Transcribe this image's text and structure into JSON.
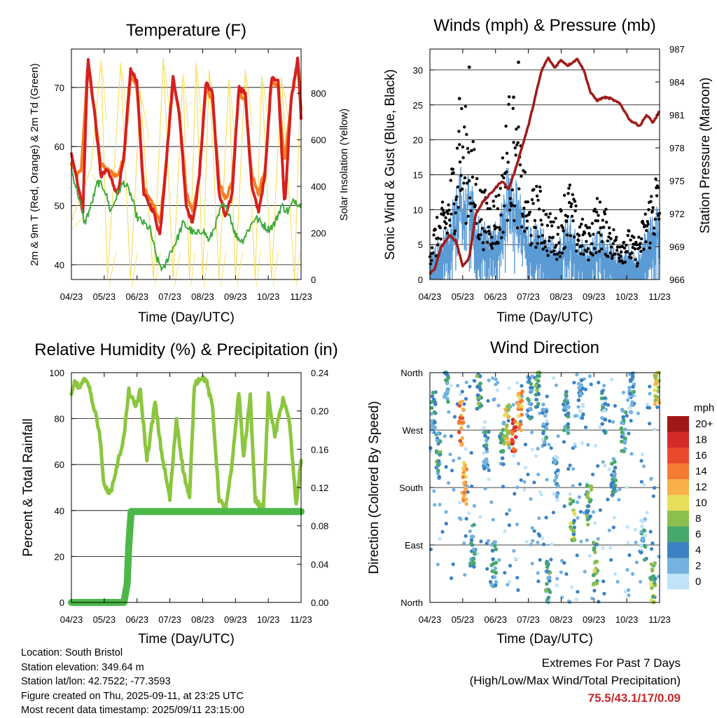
{
  "colors": {
    "temp_red": "#d42020",
    "temp_orange": "#f57f20",
    "dewpoint_green": "#3daa3d",
    "insolation_yellow": "#f7da4a",
    "gust_black": "#000000",
    "wind_blue": "#5b9bd5",
    "pressure_maroon": "#a01c1c",
    "rh_lightgreen": "#8cc63f",
    "precip_green": "#4bb848",
    "extremes_red": "#c62828"
  },
  "info": {
    "location": "Location: South Bristol",
    "elevation": "Station elevation: 349.64 m",
    "latlon": "Station lat/lon: 42.7522; -77.3593",
    "created": "Figure created on Thu, 2025-09-11, at 23:25 UTC",
    "timestamp": "Most recent data timestamp: 2025/09/11 23:15:00"
  },
  "extremes": {
    "title": "Extremes For Past 7 Days",
    "subtitle": "(High/Low/Max Wind/Total Precipitation)",
    "values": "75.5/43.1/17/0.09"
  },
  "chart_data": [
    {
      "id": "temperature",
      "type": "line",
      "title": "Temperature (F)",
      "xlabel": "Time (Day/UTC)",
      "ylabel": "2m & 9m T (Red, Orange) & 2m Td (Green)",
      "ylabel_right": "Solar Insolation (Yellow)",
      "x_ticks": [
        "04/23",
        "05/23",
        "06/23",
        "07/23",
        "08/23",
        "09/23",
        "10/23",
        "11/23"
      ],
      "ylim": [
        37.5,
        76.5
      ],
      "y_ticks": [
        40,
        50,
        60,
        70
      ],
      "ylim_right": [
        0,
        990
      ],
      "y_ticks_right": [
        0,
        200,
        400,
        600,
        800
      ],
      "grid": true,
      "series": [
        {
          "color": "#f7da4a",
          "axis": "right",
          "width": 1,
          "x": [
            0,
            0.6,
            0.9,
            1.1,
            1.5,
            1.8,
            2.1,
            2.5,
            2.8,
            3.1,
            3.4,
            3.6,
            3.8,
            4.0,
            4.2,
            4.5,
            4.8,
            5.0,
            5.3,
            5.6,
            5.8,
            6.1,
            6.4,
            6.8,
            7.0
          ],
          "values": [
            250,
            480,
            940,
            0,
            930,
            0,
            810,
            0,
            950,
            0,
            880,
            0,
            930,
            0,
            900,
            0,
            860,
            0,
            900,
            0,
            880,
            0,
            870,
            0,
            900
          ]
        },
        {
          "color": "#f57f20",
          "axis": "left",
          "width": 4,
          "x": [
            0,
            0.15,
            0.3,
            0.5,
            0.7,
            0.9,
            1.1,
            1.4,
            1.6,
            1.8,
            2.0,
            2.2,
            2.5,
            2.7,
            2.9,
            3.1,
            3.3,
            3.5,
            3.7,
            3.9,
            4.1,
            4.3,
            4.5,
            4.7,
            4.9,
            5.1,
            5.3,
            5.5,
            5.7,
            5.9,
            6.1,
            6.3,
            6.5,
            6.7,
            6.9,
            7.0
          ],
          "values": [
            57,
            55,
            56,
            74,
            66,
            57,
            56,
            55,
            58,
            72,
            70,
            53,
            50,
            47,
            58,
            71,
            65,
            52,
            49,
            55,
            70,
            68,
            54,
            51,
            54,
            69,
            68,
            55,
            52,
            56,
            71,
            70,
            57,
            68,
            74,
            66
          ]
        },
        {
          "color": "#d42020",
          "axis": "left",
          "width": 4,
          "x": [
            0,
            0.15,
            0.35,
            0.5,
            0.7,
            0.9,
            1.1,
            1.4,
            1.6,
            1.8,
            2.0,
            2.2,
            2.5,
            2.7,
            2.9,
            3.1,
            3.3,
            3.5,
            3.7,
            3.9,
            4.1,
            4.3,
            4.5,
            4.7,
            4.9,
            5.1,
            5.3,
            5.5,
            5.7,
            5.9,
            6.1,
            6.3,
            6.5,
            6.7,
            6.9,
            7.0
          ],
          "values": [
            59,
            55,
            49,
            75,
            66,
            55,
            56,
            52,
            58,
            73,
            71,
            52,
            49,
            45,
            58,
            72,
            65,
            50,
            47,
            55,
            71,
            69,
            52,
            48,
            52,
            70,
            69,
            53,
            49,
            55,
            72,
            71,
            50,
            68,
            75,
            65
          ]
        },
        {
          "color": "#3daa3d",
          "axis": "left",
          "width": 2,
          "x": [
            0,
            0.2,
            0.4,
            0.6,
            0.8,
            1.0,
            1.2,
            1.4,
            1.6,
            1.8,
            2.0,
            2.2,
            2.4,
            2.6,
            2.8,
            3.0,
            3.2,
            3.4,
            3.6,
            3.8,
            4.0,
            4.2,
            4.4,
            4.6,
            4.8,
            5.0,
            5.2,
            5.4,
            5.6,
            5.8,
            6.0,
            6.2,
            6.4,
            6.6,
            6.8,
            7.0
          ],
          "values": [
            56,
            52,
            47,
            50,
            54,
            53,
            49,
            52,
            54,
            52,
            48,
            47,
            46,
            41,
            39,
            42,
            44,
            47,
            46,
            45,
            46,
            44,
            47,
            50,
            49,
            45,
            44,
            46,
            48,
            47,
            46,
            47,
            50,
            49,
            51,
            50
          ]
        }
      ]
    },
    {
      "id": "winds",
      "type": "scatter",
      "title": "Winds (mph) & Pressure (mb)",
      "xlabel": "Time (Day/UTC)",
      "ylabel": "Sonic Wind & Gust (Blue, Black)",
      "ylabel_right": "Station Pressure (Maroon)",
      "x_ticks": [
        "04/23",
        "05/23",
        "06/23",
        "07/23",
        "08/23",
        "09/23",
        "10/23",
        "11/23"
      ],
      "ylim": [
        0,
        33
      ],
      "y_ticks": [
        0,
        5,
        10,
        15,
        20,
        25,
        30
      ],
      "ylim_right": [
        966,
        987
      ],
      "y_ticks_right": [
        966,
        969,
        972,
        975,
        978,
        981,
        984,
        987
      ],
      "grid": true,
      "gust_envelope": {
        "x": [
          0,
          0.3,
          0.6,
          0.9,
          1.2,
          1.5,
          1.8,
          2.1,
          2.4,
          2.7,
          3.0,
          3.3,
          3.6,
          3.9,
          4.2,
          4.5,
          4.8,
          5.1,
          5.4,
          5.7,
          6.0,
          6.3,
          6.6,
          6.9,
          7.0
        ],
        "values": [
          6,
          9,
          13,
          24,
          22,
          13,
          11,
          12,
          25,
          20,
          11,
          13,
          9,
          8,
          14,
          9,
          7,
          11,
          9,
          6,
          7,
          5,
          10,
          15,
          12
        ]
      },
      "wind_envelope": {
        "x": [
          0,
          0.3,
          0.6,
          0.9,
          1.2,
          1.5,
          1.8,
          2.1,
          2.4,
          2.7,
          3.0,
          3.3,
          3.6,
          3.9,
          4.2,
          4.5,
          4.8,
          5.1,
          5.4,
          5.7,
          6.0,
          6.3,
          6.6,
          6.9,
          7.0
        ],
        "values": [
          3,
          5,
          7,
          13,
          12,
          7,
          6,
          7,
          14,
          11,
          6,
          7,
          5,
          4,
          8,
          5,
          4,
          6,
          5,
          3,
          4,
          3,
          6,
          9,
          7
        ]
      },
      "gust_outliers": {
        "x": [
          1.2,
          2.7,
          0.9,
          2.55
        ],
        "values": [
          30.4,
          31.1,
          25.9,
          26.1
        ]
      },
      "series": [
        {
          "name": "",
          "color": "#a01c1c",
          "axis": "right",
          "x": [
            0,
            0.15,
            0.35,
            0.6,
            0.8,
            1.0,
            1.2,
            1.4,
            1.6,
            1.9,
            2.2,
            2.4,
            2.6,
            2.8,
            3.0,
            3.2,
            3.4,
            3.6,
            3.8,
            4.0,
            4.2,
            4.5,
            4.7,
            4.9,
            5.1,
            5.3,
            5.5,
            5.8,
            6.1,
            6.4,
            6.6,
            6.8,
            7.0
          ],
          "values": [
            966.5,
            967,
            969,
            970,
            969.5,
            967.2,
            968,
            972,
            973,
            974,
            975,
            974.2,
            976,
            978,
            980,
            982.5,
            985,
            986.2,
            985.3,
            986,
            985.5,
            986.1,
            985,
            983,
            982.3,
            982.6,
            982.5,
            982,
            980.5,
            980,
            981,
            980.3,
            981.3
          ]
        }
      ]
    },
    {
      "id": "rh_precip",
      "type": "line",
      "title": "Relative Humidity (%) & Precipitation (in)",
      "xlabel": "Time (Day/UTC)",
      "ylabel": "Percent & Total Rainfall",
      "x_ticks": [
        "04/23",
        "05/23",
        "06/23",
        "07/23",
        "08/23",
        "09/23",
        "10/23",
        "11/23"
      ],
      "ylim": [
        0,
        100
      ],
      "y_ticks": [
        0,
        20,
        40,
        60,
        80,
        100
      ],
      "ylim_right": [
        0,
        0.24
      ],
      "y_ticks_right": [
        "0.00",
        "0.04",
        "0.08",
        "0.12",
        "0.16",
        "0.20",
        "0.24"
      ],
      "grid": true,
      "series": [
        {
          "color": "#8cc63f",
          "axis": "left",
          "width": 5,
          "x": [
            0,
            0.1,
            0.25,
            0.45,
            0.6,
            0.85,
            1.0,
            1.2,
            1.4,
            1.6,
            1.75,
            1.95,
            2.1,
            2.3,
            2.55,
            2.75,
            3.0,
            3.2,
            3.4,
            3.6,
            3.75,
            3.95,
            4.1,
            4.3,
            4.5,
            4.7,
            4.9,
            5.1,
            5.25,
            5.45,
            5.6,
            5.85,
            6.0,
            6.2,
            6.45,
            6.65,
            6.85,
            7.0
          ],
          "values": [
            90,
            96,
            93,
            98,
            90,
            75,
            50,
            48,
            60,
            72,
            92,
            85,
            92,
            62,
            87,
            65,
            45,
            80,
            58,
            45,
            95,
            98,
            97,
            85,
            45,
            40,
            60,
            92,
            63,
            90,
            45,
            40,
            90,
            72,
            89,
            78,
            42,
            62
          ]
        },
        {
          "color": "#4bb848",
          "axis": "right",
          "width": 10,
          "x": [
            0,
            1.6,
            1.7,
            1.75,
            1.82,
            7.0
          ],
          "values": [
            0,
            0,
            0.02,
            0.06,
            0.095,
            0.095
          ]
        }
      ]
    },
    {
      "id": "wind_direction",
      "type": "scatter",
      "title": "Wind Direction",
      "xlabel": "Time (Day/UTC)",
      "ylabel": "Direction (Colored By Speed)",
      "x_ticks": [
        "04/23",
        "05/23",
        "06/23",
        "07/23",
        "08/23",
        "09/23",
        "10/23",
        "11/23"
      ],
      "y_tick_labels": [
        "North",
        "East",
        "South",
        "West",
        "North"
      ],
      "ylim": [
        0,
        360
      ],
      "grid": true,
      "legend_title": "mph",
      "legend_labels": [
        "20+",
        "18",
        "16",
        "14",
        "12",
        "10",
        "8",
        "6",
        "4",
        "2",
        "0"
      ],
      "legend_colors": [
        "#a01818",
        "#d42a2a",
        "#e94a2c",
        "#f47b31",
        "#f8b04a",
        "#e6de58",
        "#8cc04e",
        "#47a86e",
        "#3b82c2",
        "#74b3e0",
        "#bfe3f7"
      ],
      "legend_position": "right",
      "clusters": [
        {
          "x": 0.1,
          "dir": 300,
          "speed": 3
        },
        {
          "x": 0.25,
          "dir": 230,
          "speed": 5
        },
        {
          "x": 0.5,
          "dir": 345,
          "speed": 4
        },
        {
          "x": 0.95,
          "dir": 280,
          "speed": 14
        },
        {
          "x": 1.05,
          "dir": 185,
          "speed": 12
        },
        {
          "x": 1.3,
          "dir": 90,
          "speed": 4
        },
        {
          "x": 1.5,
          "dir": 330,
          "speed": 6
        },
        {
          "x": 1.7,
          "dir": 240,
          "speed": 3
        },
        {
          "x": 1.95,
          "dir": 60,
          "speed": 4
        },
        {
          "x": 2.2,
          "dir": 250,
          "speed": 5
        },
        {
          "x": 2.35,
          "dir": 280,
          "speed": 10
        },
        {
          "x": 2.55,
          "dir": 270,
          "speed": 16
        },
        {
          "x": 2.75,
          "dir": 300,
          "speed": 12
        },
        {
          "x": 3.05,
          "dir": 320,
          "speed": 4
        },
        {
          "x": 3.3,
          "dir": 340,
          "speed": 6
        },
        {
          "x": 3.5,
          "dir": 280,
          "speed": 3
        },
        {
          "x": 3.6,
          "dir": 30,
          "speed": 5
        },
        {
          "x": 3.85,
          "dir": 200,
          "speed": 2
        },
        {
          "x": 4.15,
          "dir": 300,
          "speed": 4
        },
        {
          "x": 4.35,
          "dir": 130,
          "speed": 7
        },
        {
          "x": 4.6,
          "dir": 320,
          "speed": 2
        },
        {
          "x": 4.85,
          "dir": 150,
          "speed": 6
        },
        {
          "x": 5.05,
          "dir": 60,
          "speed": 7
        },
        {
          "x": 5.3,
          "dir": 300,
          "speed": 3
        },
        {
          "x": 5.6,
          "dir": 200,
          "speed": 4
        },
        {
          "x": 5.9,
          "dir": 270,
          "speed": 4
        },
        {
          "x": 6.15,
          "dir": 330,
          "speed": 3
        },
        {
          "x": 6.5,
          "dir": 100,
          "speed": 3
        },
        {
          "x": 6.8,
          "dir": 30,
          "speed": 7
        },
        {
          "x": 6.92,
          "dir": 340,
          "speed": 10
        }
      ]
    }
  ]
}
